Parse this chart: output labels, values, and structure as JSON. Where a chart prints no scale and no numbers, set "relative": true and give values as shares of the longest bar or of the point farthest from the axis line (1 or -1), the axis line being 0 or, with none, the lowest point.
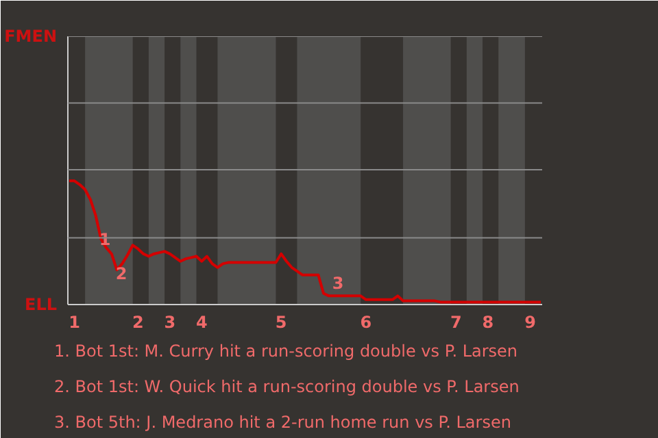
{
  "chart_data": {
    "type": "line",
    "relative": true,
    "categories": [
      null,
      "1",
      null,
      null,
      null,
      null,
      null,
      null,
      null,
      null,
      null,
      null,
      null,
      "2",
      null,
      null,
      null,
      null,
      null,
      "3",
      null,
      null,
      null,
      null,
      null,
      "4",
      null,
      null,
      null,
      null,
      null,
      null,
      null,
      null,
      null,
      null,
      null,
      null,
      null,
      null,
      "5",
      null,
      null,
      null,
      null,
      null,
      null,
      null,
      null,
      null,
      null,
      null,
      null,
      null,
      null,
      null,
      "6",
      null,
      null,
      null,
      null,
      null,
      null,
      null,
      null,
      null,
      null,
      null,
      null,
      null,
      null,
      null,
      null,
      "7",
      null,
      null,
      null,
      null,
      null,
      "8",
      null,
      null,
      null,
      null,
      null,
      null,
      null,
      "9",
      null,
      null
    ],
    "series": [
      {
        "color": "#d40000",
        "values": [
          1,
          1,
          0.97,
          0.93,
          0.85,
          0.72,
          0.53,
          0.46,
          0.41,
          0.28,
          0.33,
          0.4,
          0.48,
          0.45,
          0.41,
          0.39,
          0.41,
          0.42,
          0.43,
          0.41,
          0.38,
          0.35,
          0.37,
          0.38,
          0.39,
          0.35,
          0.39,
          0.33,
          0.3,
          0.33,
          0.34,
          0.34,
          0.34,
          0.34,
          0.34,
          0.34,
          0.34,
          0.34,
          0.34,
          0.34,
          0.41,
          0.35,
          0.3,
          0.27,
          0.24,
          0.24,
          0.24,
          0.24,
          0.09,
          0.07,
          0.07,
          0.07,
          0.07,
          0.07,
          0.07,
          0.07,
          0.04,
          0.04,
          0.04,
          0.04,
          0.04,
          0.04,
          0.07,
          0.03,
          0.03,
          0.03,
          0.03,
          0.03,
          0.03,
          0.03,
          0.02,
          0.02,
          0.02,
          0.02,
          0.02,
          0.02,
          0.02,
          0.02,
          0.02,
          0.02,
          0.02,
          0.02,
          0.02,
          0.02,
          0.02,
          0.02,
          0.02,
          0.02,
          0.02,
          0.02
        ]
      }
    ],
    "marker": "none",
    "line_style": "solid",
    "ref_lines": [
      {
        "axis": "y",
        "value": 0.54,
        "color": "#8a8a8a"
      },
      {
        "axis": "y",
        "value": 1.09,
        "color": "#8a8a8a"
      },
      {
        "axis": "y",
        "value": 1.63,
        "color": "#8a8a8a"
      },
      {
        "axis": "y",
        "value": 2.17,
        "color": "#8a8a8a"
      }
    ],
    "annotations": [
      "FMEN",
      "ELL",
      "1",
      "2",
      "3",
      "1. Bot 1st: M. Curry hit a run-scoring double vs P. Larsen",
      "2. Bot 1st: W. Quick hit a run-scoring double vs P. Larsen",
      "3. Bot 5th: J. Medrano hit a 2-run home run vs P. Larsen"
    ]
  }
}
